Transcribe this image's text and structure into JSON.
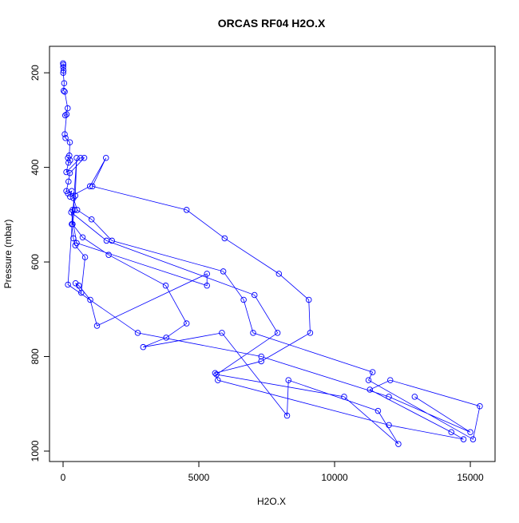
{
  "chart_data": {
    "type": "line",
    "title": "ORCAS RF04 H2O.X",
    "x_label": "H2O.X",
    "y_label": "Pressure (mbar)",
    "color": "#0000ff",
    "x": [
      0,
      10,
      5,
      15,
      5,
      40,
      20,
      60,
      170,
      80,
      130,
      60,
      90,
      250,
      230,
      180,
      260,
      200,
      120,
      640,
      780,
      250,
      200,
      120,
      180,
      320,
      260,
      990,
      1580,
      1080,
      4550,
      5950,
      7950,
      9050,
      9100,
      7300,
      5600,
      5700,
      12000,
      14750,
      14300,
      11300,
      12050,
      15350,
      15100,
      11250,
      11400,
      7000,
      6650,
      5900,
      1800,
      1050,
      520,
      380,
      420,
      350,
      720,
      1680,
      3780,
      4550,
      3800,
      2950,
      5850,
      8250,
      8300,
      11600,
      12350,
      10350,
      5650,
      7900,
      7050,
      1600,
      300,
      500,
      5300,
      5300,
      1250,
      1000,
      580,
      460,
      670,
      810,
      450,
      380,
      320,
      350,
      450,
      500,
      180,
      2750,
      7300,
      12000,
      15000,
      12950
    ],
    "values": [
      180,
      183,
      188,
      195,
      200,
      222,
      238,
      240,
      275,
      290,
      288,
      330,
      338,
      347,
      375,
      380,
      385,
      390,
      410,
      380,
      380,
      412,
      430,
      450,
      455,
      450,
      462,
      440,
      380,
      440,
      490,
      550,
      625,
      680,
      750,
      810,
      835,
      850,
      945,
      975,
      960,
      870,
      850,
      905,
      975,
      850,
      833,
      750,
      680,
      620,
      555,
      510,
      490,
      465,
      490,
      520,
      548,
      585,
      650,
      730,
      760,
      780,
      750,
      925,
      850,
      915,
      985,
      885,
      838,
      750,
      670,
      555,
      495,
      560,
      650,
      625,
      735,
      680,
      650,
      645,
      665,
      590,
      565,
      550,
      520,
      490,
      460,
      380,
      648,
      750,
      800,
      885,
      960,
      885
    ],
    "xlim": [
      -500,
      15910
    ],
    "ylim": [
      1022,
      144
    ],
    "xticks": [
      0,
      5000,
      10000,
      15000
    ],
    "yticks": [
      200,
      400,
      600,
      800,
      1000
    ]
  }
}
